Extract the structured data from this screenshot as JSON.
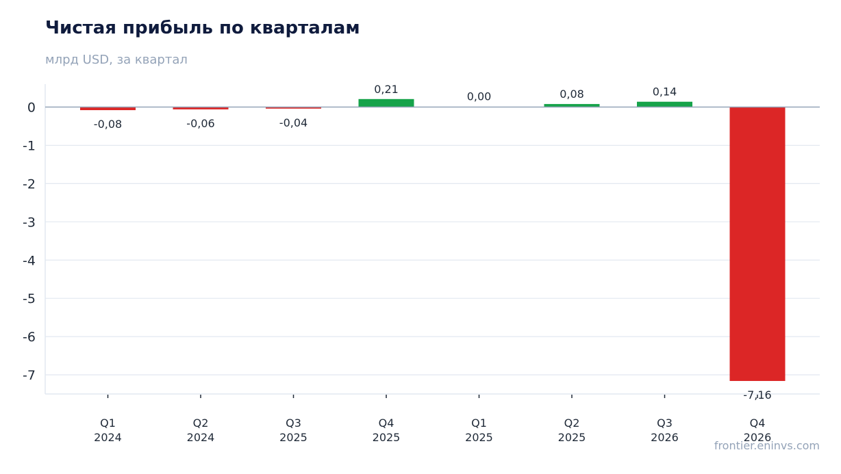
{
  "chart_data": {
    "type": "bar",
    "title": "Чистая прибыль по кварталам",
    "subtitle": "млрд USD, за квартал",
    "categories": [
      [
        "Q1",
        "2024"
      ],
      [
        "Q2",
        "2024"
      ],
      [
        "Q3",
        "2025"
      ],
      [
        "Q4",
        "2025"
      ],
      [
        "Q1",
        "2025"
      ],
      [
        "Q2",
        "2025"
      ],
      [
        "Q3",
        "2026"
      ],
      [
        "Q4",
        "2026"
      ]
    ],
    "values": [
      -0.08,
      -0.06,
      -0.04,
      0.21,
      0.0,
      0.08,
      0.14,
      -7.16
    ],
    "value_labels": [
      "-0,08",
      "-0,06",
      "-0,04",
      "0,21",
      "0,00",
      "0,08",
      "0,14",
      "-7,16"
    ],
    "ylim": [
      -7.5,
      0.6
    ],
    "yticks": [
      0,
      -1,
      -2,
      -3,
      -4,
      -5,
      -6,
      -7
    ],
    "ytick_labels": [
      "0",
      "-1",
      "-2",
      "-3",
      "-4",
      "-5",
      "-6",
      "-7"
    ],
    "grid": true,
    "colors": {
      "positive": "#16a34a",
      "negative": "#dc2626",
      "grid": "#e2e8f0",
      "zero_line": "#94a3b8",
      "axis": "#e2e8f0"
    }
  },
  "watermark": "frontier.eninvs.com"
}
